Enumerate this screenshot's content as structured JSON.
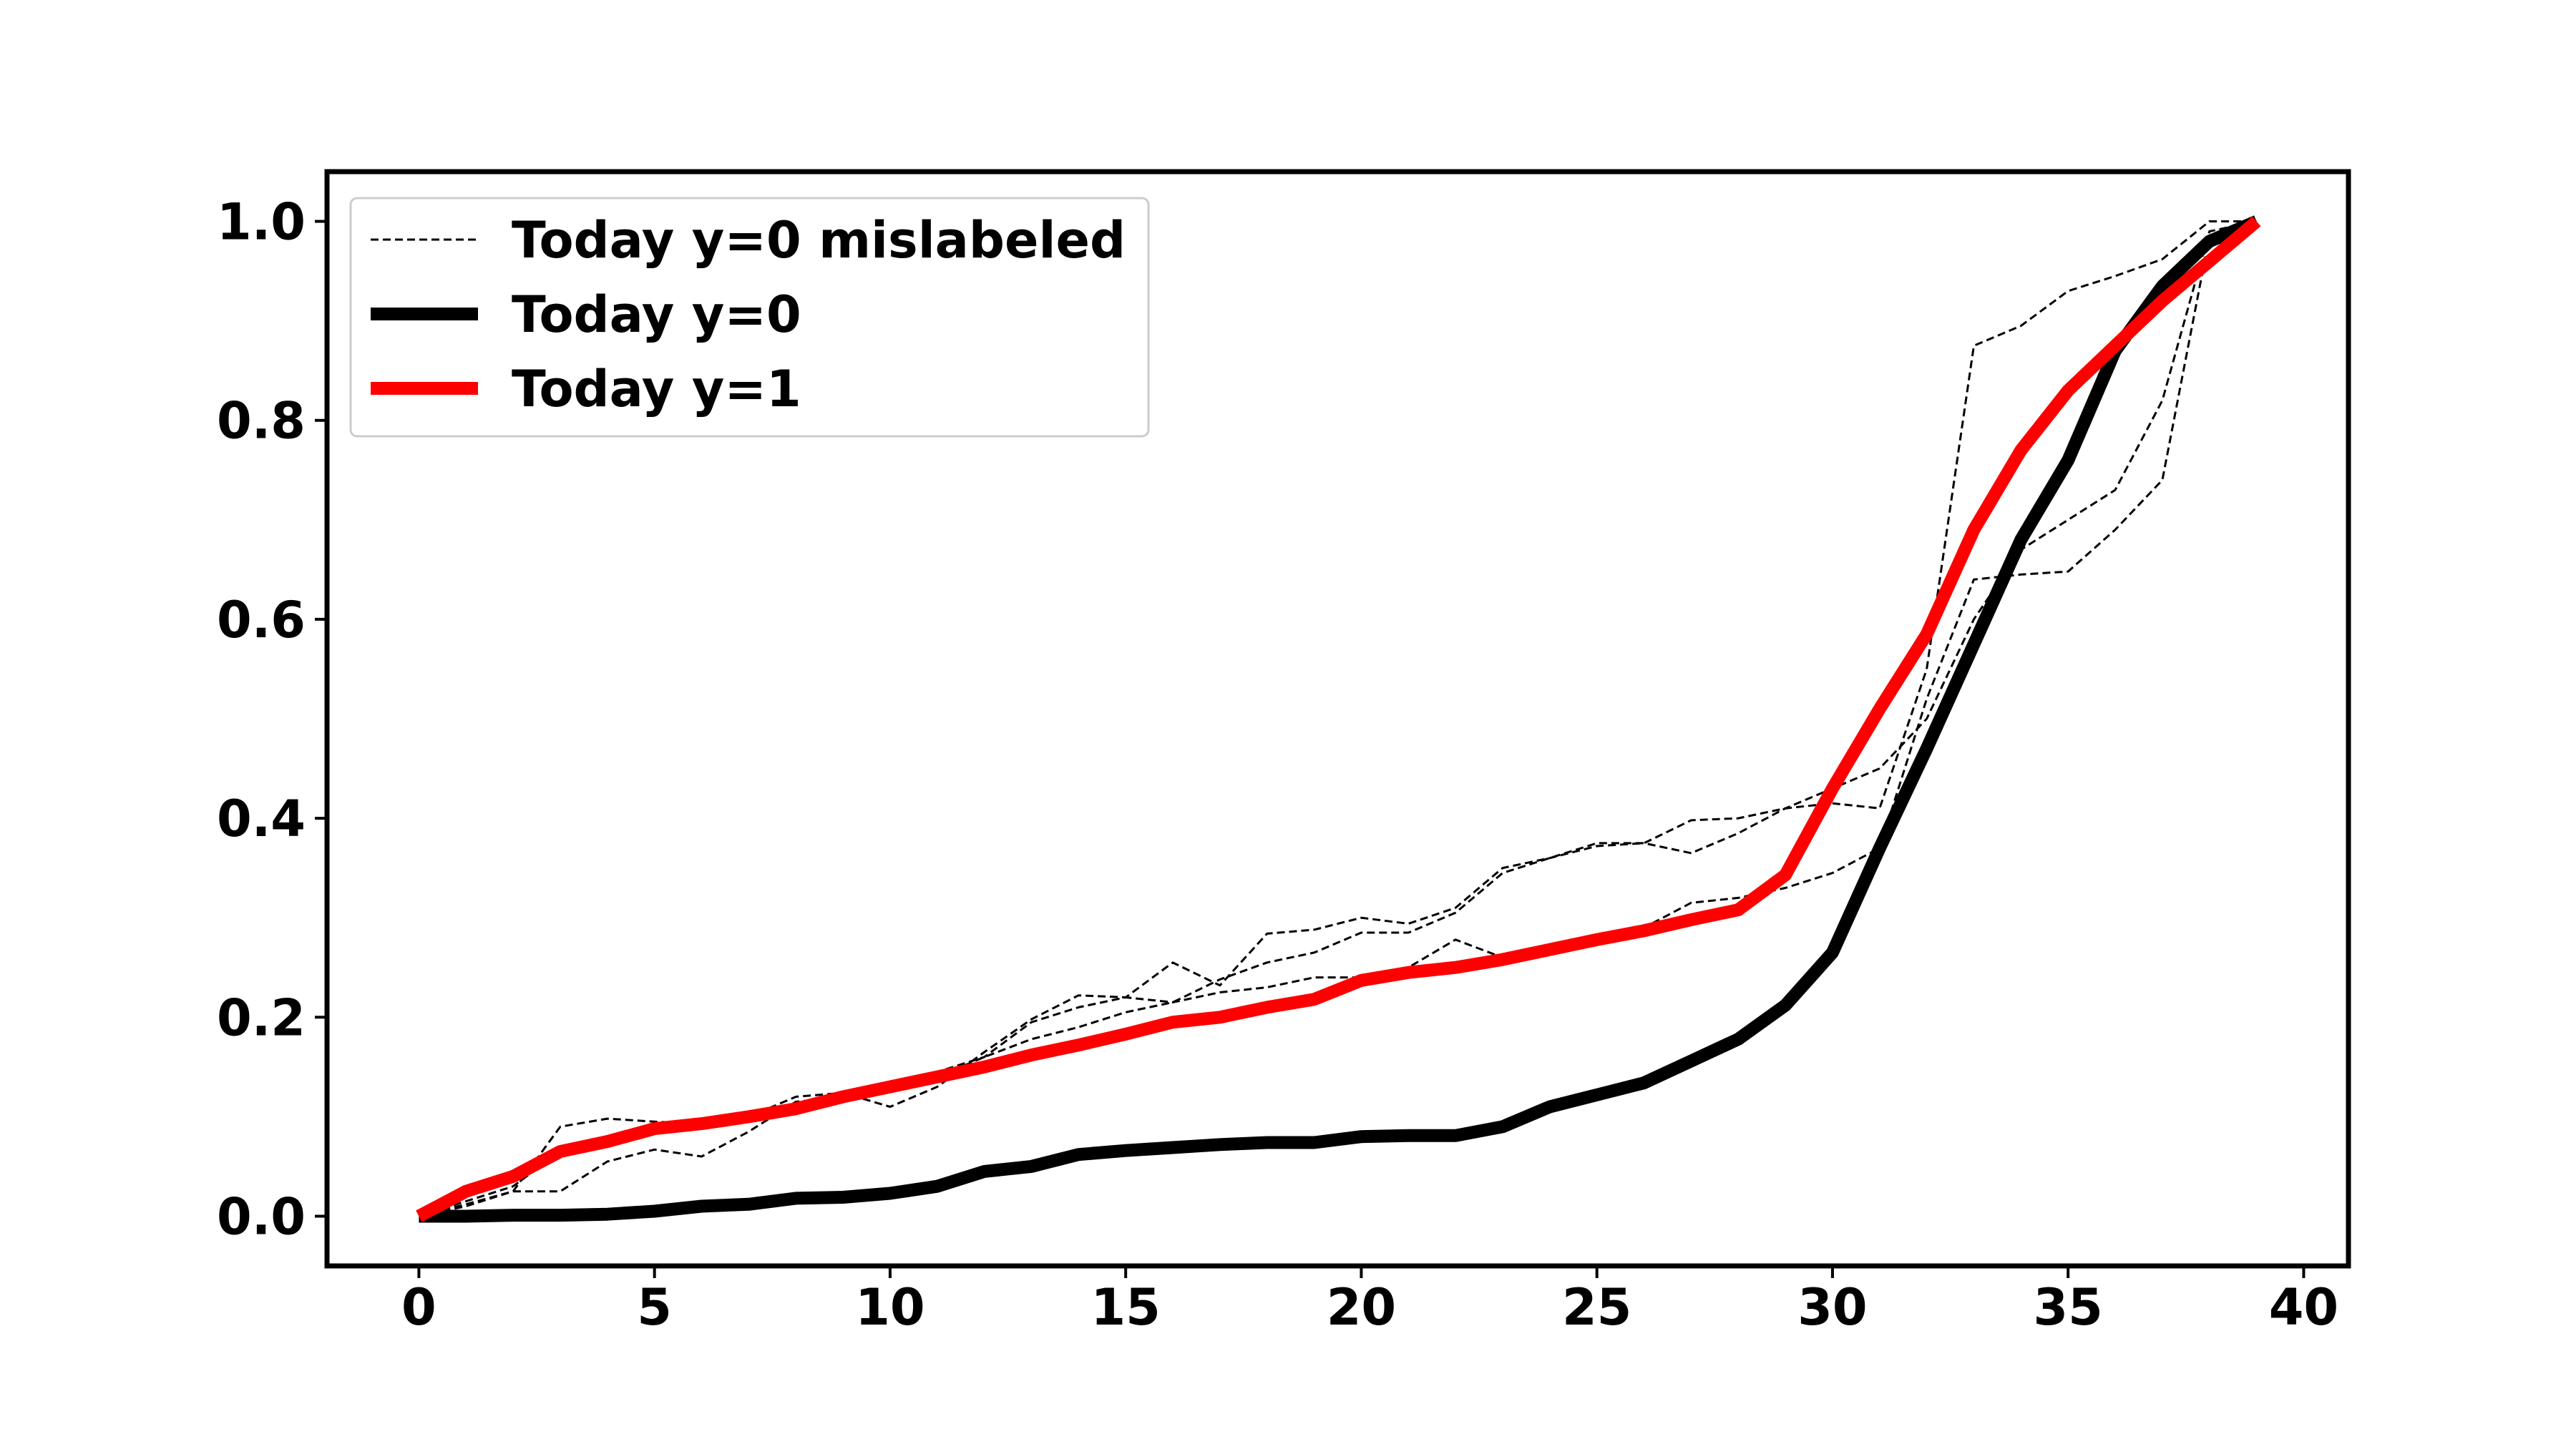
{
  "chart_data": {
    "type": "line",
    "title": "",
    "xlabel": "",
    "ylabel": "",
    "xlim": [
      -1.95,
      40.95
    ],
    "ylim": [
      -0.05,
      1.05
    ],
    "x_ticks": [
      0,
      5,
      10,
      15,
      20,
      25,
      30,
      35,
      40
    ],
    "x_tick_labels": [
      "0",
      "5",
      "10",
      "15",
      "20",
      "25",
      "30",
      "35",
      "40"
    ],
    "y_ticks": [
      0.0,
      0.2,
      0.4,
      0.6,
      0.8,
      1.0
    ],
    "y_tick_labels": [
      "0.0",
      "0.2",
      "0.4",
      "0.6",
      "0.8",
      "1.0"
    ],
    "grid": false,
    "legend_placement": "upper-left",
    "legend": [
      {
        "label": "Today y=0 mislabeled",
        "color": "#000000",
        "style": "dashed-thin"
      },
      {
        "label": "Today y=0",
        "color": "#000000",
        "style": "solid-thick"
      },
      {
        "label": "Today y=1",
        "color": "#ff0000",
        "style": "solid-thick"
      }
    ],
    "x": [
      0,
      1,
      2,
      3,
      4,
      5,
      6,
      7,
      8,
      9,
      10,
      11,
      12,
      13,
      14,
      15,
      16,
      17,
      18,
      19,
      20,
      21,
      22,
      23,
      24,
      25,
      26,
      27,
      28,
      29,
      30,
      31,
      32,
      33,
      34,
      35,
      36,
      37,
      38,
      39
    ],
    "mislabeled_series": [
      {
        "name": "Today y=0 mislabeled",
        "color": "#000000",
        "values": [
          0.0,
          0.01,
          0.025,
          0.09,
          0.098,
          0.095,
          0.093,
          0.1,
          0.12,
          0.124,
          0.11,
          0.13,
          0.165,
          0.198,
          0.222,
          0.22,
          0.255,
          0.232,
          0.284,
          0.288,
          0.3,
          0.294,
          0.31,
          0.35,
          0.36,
          0.372,
          0.375,
          0.398,
          0.4,
          0.41,
          0.415,
          0.41,
          0.55,
          0.875,
          0.895,
          0.93,
          0.945,
          0.962,
          1.0,
          1.0
        ]
      },
      {
        "name": "Today y=0 mislabeled",
        "color": "#000000",
        "values": [
          0.0,
          0.015,
          0.03,
          0.065,
          0.075,
          0.085,
          0.09,
          0.098,
          0.105,
          0.115,
          0.125,
          0.14,
          0.16,
          0.178,
          0.19,
          0.205,
          0.215,
          0.238,
          0.255,
          0.265,
          0.285,
          0.285,
          0.305,
          0.345,
          0.36,
          0.375,
          0.375,
          0.365,
          0.385,
          0.41,
          0.43,
          0.45,
          0.5,
          0.6,
          0.67,
          0.7,
          0.73,
          0.82,
          0.99,
          1.0
        ]
      },
      {
        "name": "Today y=0 mislabeled",
        "color": "#000000",
        "values": [
          0.0,
          0.012,
          0.025,
          0.025,
          0.055,
          0.067,
          0.06,
          0.085,
          0.115,
          0.12,
          0.13,
          0.145,
          0.16,
          0.195,
          0.21,
          0.22,
          0.215,
          0.225,
          0.23,
          0.24,
          0.24,
          0.25,
          0.278,
          0.26,
          0.27,
          0.28,
          0.29,
          0.315,
          0.32,
          0.33,
          0.345,
          0.37,
          0.52,
          0.64,
          0.645,
          0.648,
          0.69,
          0.74,
          0.985,
          1.0
        ]
      }
    ],
    "series": [
      {
        "name": "Today y=0",
        "color": "#000000",
        "values": [
          0.0,
          0.0,
          0.001,
          0.001,
          0.002,
          0.005,
          0.01,
          0.012,
          0.018,
          0.019,
          0.023,
          0.03,
          0.045,
          0.05,
          0.062,
          0.066,
          0.069,
          0.072,
          0.074,
          0.074,
          0.08,
          0.081,
          0.081,
          0.09,
          0.11,
          0.122,
          0.134,
          0.156,
          0.178,
          0.212,
          0.265,
          0.37,
          0.47,
          0.575,
          0.68,
          0.76,
          0.87,
          0.935,
          0.98,
          1.0
        ]
      },
      {
        "name": "Today y=1",
        "color": "#ff0000",
        "values": [
          0.0,
          0.025,
          0.04,
          0.065,
          0.075,
          0.088,
          0.093,
          0.1,
          0.108,
          0.12,
          0.13,
          0.14,
          0.15,
          0.162,
          0.172,
          0.183,
          0.195,
          0.2,
          0.21,
          0.218,
          0.237,
          0.245,
          0.25,
          0.258,
          0.268,
          0.278,
          0.287,
          0.298,
          0.308,
          0.343,
          0.43,
          0.51,
          0.585,
          0.69,
          0.77,
          0.83,
          0.875,
          0.92,
          0.96,
          1.0
        ]
      }
    ]
  }
}
